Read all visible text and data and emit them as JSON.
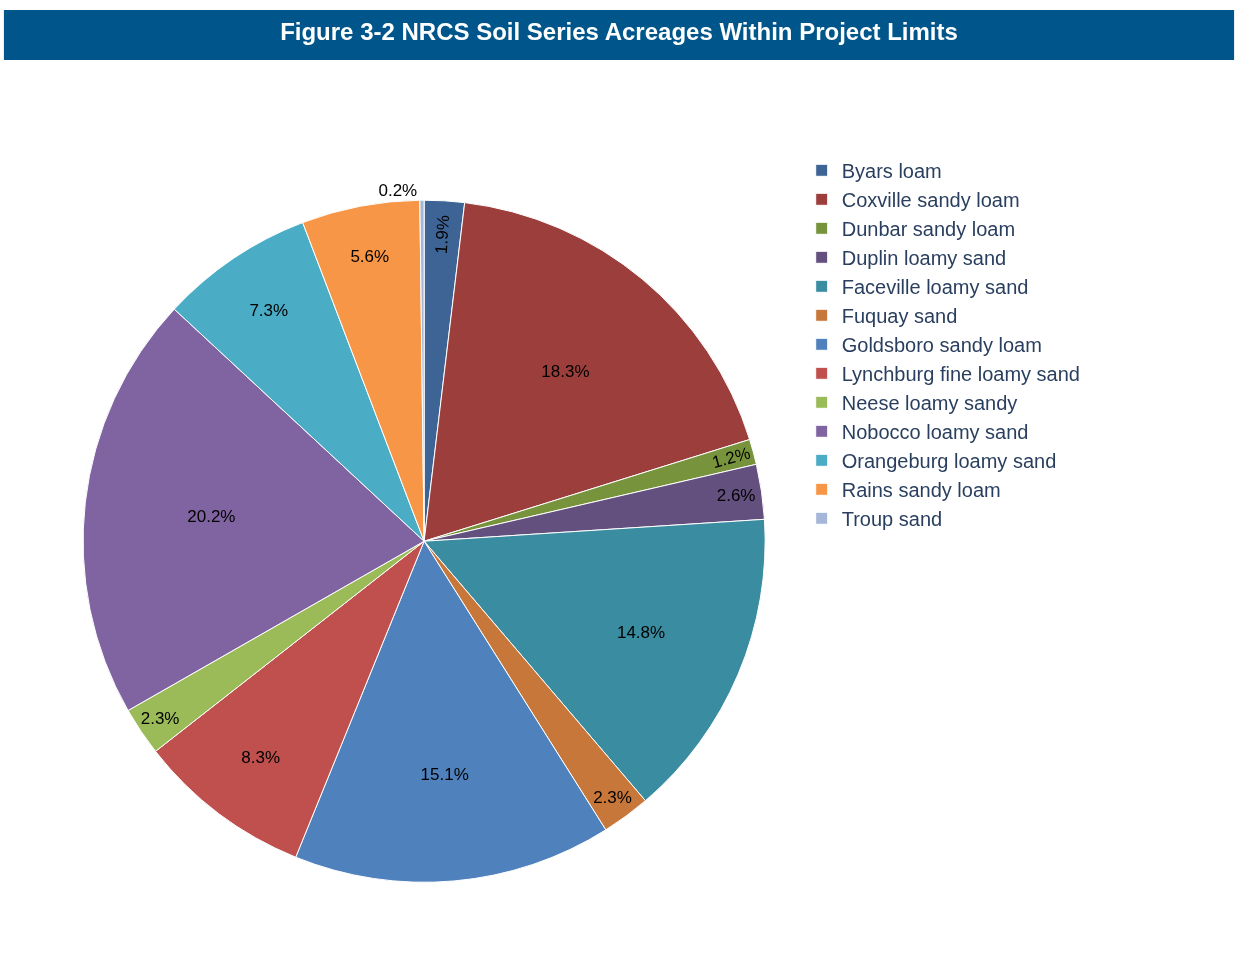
{
  "chart_data": {
    "type": "pie",
    "title": "Figure 3-2 NRCS Soil Series Acreages Within Project Limits",
    "categories": [
      "Byars loam",
      "Coxville sandy loam",
      "Dunbar sandy loam",
      "Duplin loamy sand",
      "Faceville loamy sand",
      "Fuquay sand",
      "Goldsboro sandy loam",
      "Lynchburg fine loamy sand",
      "Neese loamy sandy",
      "Nobocco loamy sand",
      "Orangeburg loamy sand",
      "Rains sandy loam",
      "Troup sand"
    ],
    "values": [
      1.9,
      18.3,
      1.2,
      2.6,
      14.8,
      2.3,
      15.1,
      8.3,
      2.3,
      20.2,
      7.3,
      5.6,
      0.2
    ],
    "value_labels": [
      "1.9%",
      "18.3%",
      "1.2%",
      "2.6%",
      "14.8%",
      "2.3%",
      "15.1%",
      "8.3%",
      "2.3%",
      "20.2%",
      "7.3%",
      "5.6%",
      "0.2%"
    ],
    "colors": [
      "#3e6496",
      "#9c3f3c",
      "#77933c",
      "#64507e",
      "#3a8ca0",
      "#c8773a",
      "#4f81bd",
      "#c0504d",
      "#9bbb59",
      "#8064a2",
      "#4bacc6",
      "#f79646",
      "#a5b7d8"
    ],
    "legend": "right"
  }
}
